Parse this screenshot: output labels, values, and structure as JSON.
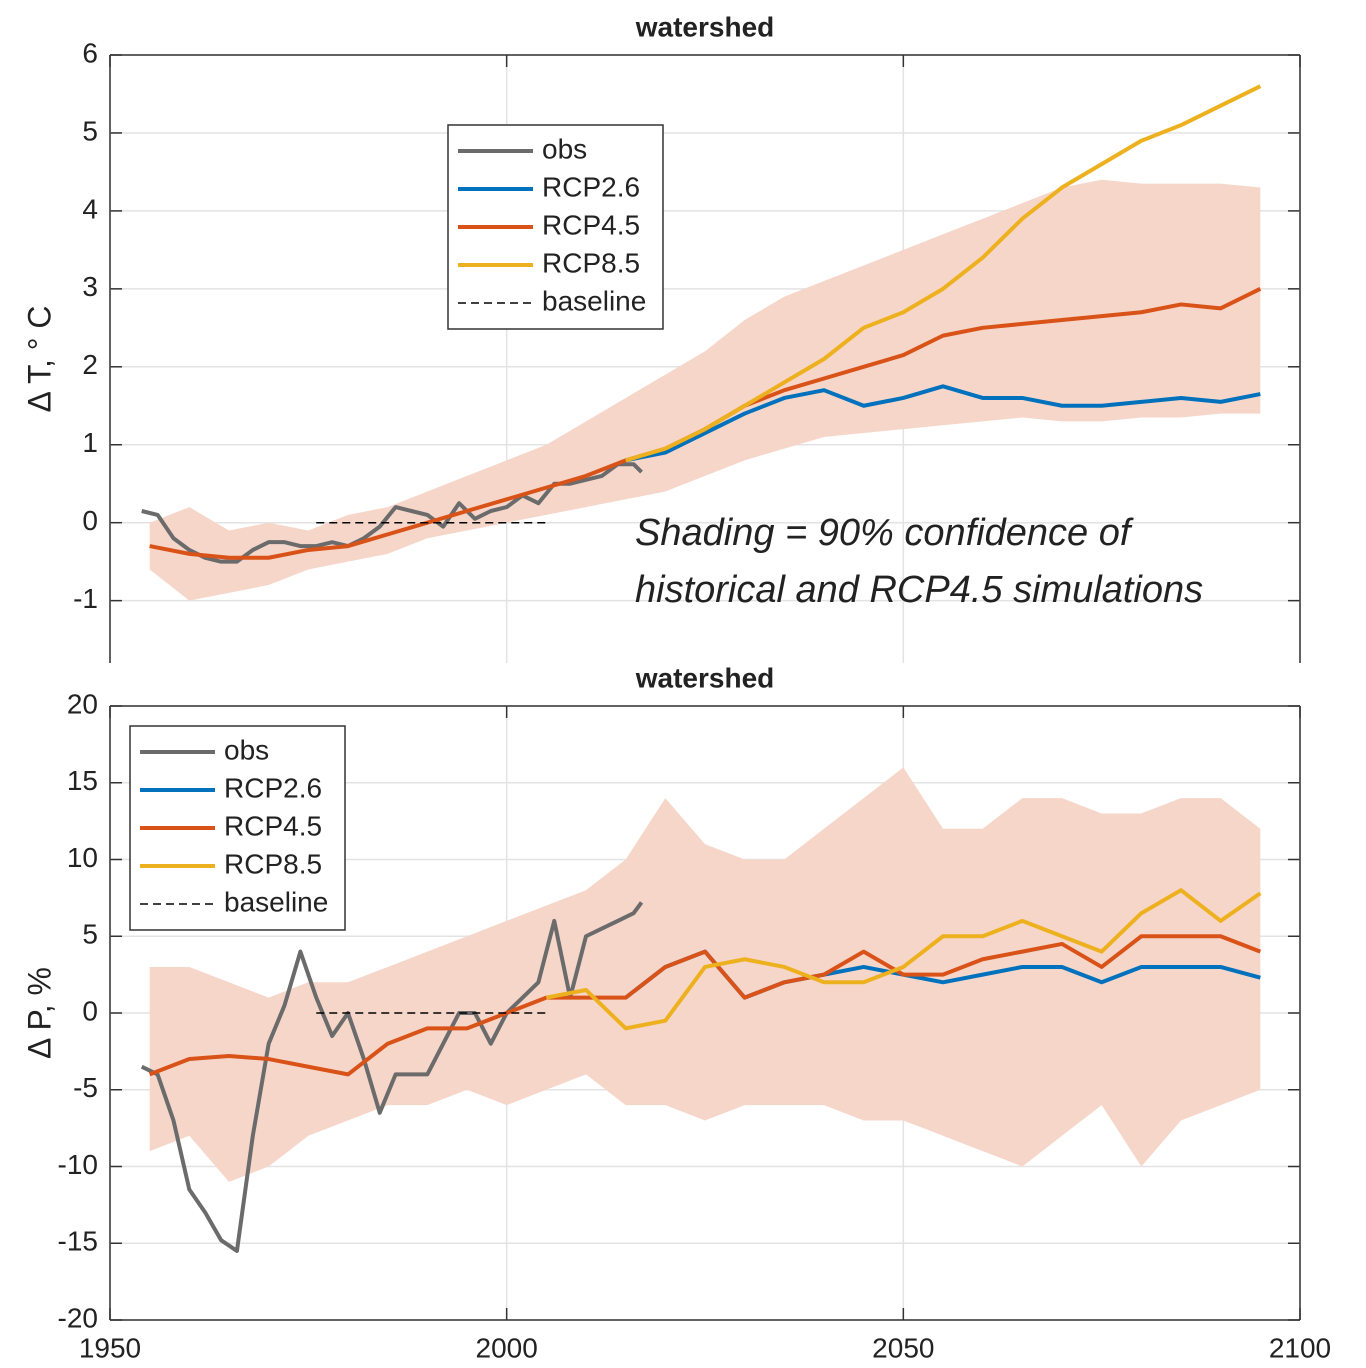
{
  "chart_data": [
    {
      "type": "line",
      "title": "watershed",
      "ylabel": "Δ T, ° C",
      "xlim": [
        1950,
        2100
      ],
      "xticks": [
        1950,
        2000,
        2050,
        2100
      ],
      "ylim": [
        -1.8,
        6
      ],
      "yticks": [
        -1,
        0,
        1,
        2,
        3,
        4,
        5,
        6
      ],
      "grid": true,
      "legend": "upper center",
      "annotation": [
        "Shading = 90% confidence of",
        "historical and RCP4.5 simulations"
      ],
      "band": {
        "color": "#f7d6ca",
        "x": [
          1955,
          1960,
          1965,
          1970,
          1975,
          1980,
          1985,
          1990,
          1995,
          2000,
          2005,
          2010,
          2015,
          2020,
          2025,
          2030,
          2035,
          2040,
          2045,
          2050,
          2055,
          2060,
          2065,
          2070,
          2075,
          2080,
          2085,
          2090,
          2095
        ],
        "lower": [
          -0.6,
          -1.0,
          -0.9,
          -0.8,
          -0.6,
          -0.5,
          -0.4,
          -0.2,
          -0.1,
          0.0,
          0.1,
          0.2,
          0.3,
          0.4,
          0.6,
          0.8,
          0.95,
          1.1,
          1.15,
          1.2,
          1.25,
          1.3,
          1.35,
          1.3,
          1.3,
          1.35,
          1.35,
          1.4,
          1.4
        ],
        "upper": [
          0.0,
          0.2,
          -0.1,
          0.0,
          -0.1,
          0.1,
          0.2,
          0.4,
          0.6,
          0.8,
          1.0,
          1.3,
          1.6,
          1.9,
          2.2,
          2.6,
          2.9,
          3.1,
          3.3,
          3.5,
          3.7,
          3.9,
          4.1,
          4.3,
          4.4,
          4.35,
          4.35,
          4.35,
          4.3
        ]
      },
      "series": [
        {
          "name": "obs",
          "color": "#6b6b6b",
          "linestyle": "solid",
          "x": [
            1954,
            1956,
            1958,
            1960,
            1962,
            1964,
            1966,
            1968,
            1970,
            1972,
            1974,
            1976,
            1978,
            1980,
            1982,
            1984,
            1986,
            1988,
            1990,
            1992,
            1994,
            1996,
            1998,
            2000,
            2002,
            2004,
            2006,
            2008,
            2010,
            2012,
            2014,
            2016,
            2017
          ],
          "values": [
            0.15,
            0.1,
            -0.2,
            -0.35,
            -0.45,
            -0.5,
            -0.5,
            -0.35,
            -0.25,
            -0.25,
            -0.3,
            -0.3,
            -0.25,
            -0.3,
            -0.2,
            -0.05,
            0.2,
            0.15,
            0.1,
            -0.05,
            0.25,
            0.05,
            0.15,
            0.2,
            0.35,
            0.25,
            0.5,
            0.5,
            0.55,
            0.6,
            0.75,
            0.75,
            0.65
          ]
        },
        {
          "name": "RCP2.6",
          "color": "#0072bd",
          "linestyle": "solid",
          "x": [
            2015,
            2020,
            2025,
            2030,
            2035,
            2040,
            2045,
            2050,
            2055,
            2060,
            2065,
            2070,
            2075,
            2080,
            2085,
            2090,
            2095
          ],
          "values": [
            0.8,
            0.9,
            1.15,
            1.4,
            1.6,
            1.7,
            1.5,
            1.6,
            1.75,
            1.6,
            1.6,
            1.5,
            1.5,
            1.55,
            1.6,
            1.55,
            1.65
          ]
        },
        {
          "name": "RCP4.5",
          "color": "#d95319",
          "linestyle": "solid",
          "x": [
            1955,
            1960,
            1965,
            1970,
            1975,
            1980,
            1985,
            1990,
            1995,
            2000,
            2005,
            2010,
            2015,
            2020,
            2025,
            2030,
            2035,
            2040,
            2045,
            2050,
            2055,
            2060,
            2065,
            2070,
            2075,
            2080,
            2085,
            2090,
            2095
          ],
          "values": [
            -0.3,
            -0.4,
            -0.45,
            -0.45,
            -0.35,
            -0.3,
            -0.15,
            0.0,
            0.15,
            0.3,
            0.45,
            0.6,
            0.8,
            0.95,
            1.2,
            1.5,
            1.7,
            1.85,
            2.0,
            2.15,
            2.4,
            2.5,
            2.55,
            2.6,
            2.65,
            2.7,
            2.8,
            2.75,
            3.0
          ]
        },
        {
          "name": "RCP8.5",
          "color": "#edb120",
          "linestyle": "solid",
          "x": [
            2015,
            2020,
            2025,
            2030,
            2035,
            2040,
            2045,
            2050,
            2055,
            2060,
            2065,
            2070,
            2075,
            2080,
            2085,
            2090,
            2095
          ],
          "values": [
            0.8,
            0.95,
            1.2,
            1.5,
            1.8,
            2.1,
            2.5,
            2.7,
            3.0,
            3.4,
            3.9,
            4.3,
            4.6,
            4.9,
            5.1,
            5.35,
            5.6
          ]
        },
        {
          "name": "baseline",
          "color": "#000000",
          "linestyle": "dashed",
          "x": [
            1976,
            2005
          ],
          "values": [
            0,
            0
          ]
        }
      ]
    },
    {
      "type": "line",
      "title": "watershed",
      "ylabel": "Δ P, %",
      "xlim": [
        1950,
        2100
      ],
      "xticks": [
        1950,
        2000,
        2050,
        2100
      ],
      "ylim": [
        -20,
        20
      ],
      "yticks": [
        -20,
        -15,
        -10,
        -5,
        0,
        5,
        10,
        15,
        20
      ],
      "grid": true,
      "legend": "upper left",
      "band": {
        "color": "#f7d6ca",
        "x": [
          1955,
          1960,
          1965,
          1970,
          1975,
          1980,
          1985,
          1990,
          1995,
          2000,
          2005,
          2010,
          2015,
          2020,
          2025,
          2030,
          2035,
          2040,
          2045,
          2050,
          2055,
          2060,
          2065,
          2070,
          2075,
          2080,
          2085,
          2090,
          2095
        ],
        "lower": [
          -9,
          -8,
          -11,
          -10,
          -8,
          -7,
          -6,
          -6,
          -5,
          -6,
          -5,
          -4,
          -6,
          -6,
          -7,
          -6,
          -6,
          -6,
          -7,
          -7,
          -8,
          -9,
          -10,
          -8,
          -6,
          -10,
          -7,
          -6,
          -5
        ],
        "upper": [
          3,
          3,
          2,
          1,
          2,
          2,
          3,
          4,
          5,
          6,
          7,
          8,
          10,
          14,
          11,
          10,
          10,
          12,
          14,
          16,
          12,
          12,
          14,
          14,
          13,
          13,
          14,
          14,
          12
        ]
      },
      "series": [
        {
          "name": "obs",
          "color": "#6b6b6b",
          "linestyle": "solid",
          "x": [
            1954,
            1956,
            1958,
            1960,
            1962,
            1964,
            1966,
            1968,
            1970,
            1972,
            1974,
            1976,
            1978,
            1980,
            1982,
            1984,
            1986,
            1988,
            1990,
            1992,
            1994,
            1996,
            1998,
            2000,
            2002,
            2004,
            2006,
            2008,
            2010,
            2012,
            2014,
            2016,
            2017
          ],
          "values": [
            -3.5,
            -4,
            -7,
            -11.5,
            -13,
            -14.8,
            -15.5,
            -8,
            -2,
            0.5,
            4,
            1,
            -1.5,
            0,
            -3,
            -6.5,
            -4,
            -4,
            -4,
            -2,
            0,
            0,
            -2,
            0,
            1,
            2,
            6,
            1,
            5,
            5.5,
            6,
            6.5,
            7.2
          ]
        },
        {
          "name": "RCP2.6",
          "color": "#0072bd",
          "linestyle": "solid",
          "x": [
            2015,
            2020,
            2025,
            2030,
            2035,
            2040,
            2045,
            2050,
            2055,
            2060,
            2065,
            2070,
            2075,
            2080,
            2085,
            2090,
            2095
          ],
          "values": [
            1,
            3,
            4,
            1,
            2,
            2.5,
            3,
            2.5,
            2,
            2.5,
            3,
            3,
            2,
            3,
            3,
            3,
            2.3
          ]
        },
        {
          "name": "RCP4.5",
          "color": "#d95319",
          "linestyle": "solid",
          "x": [
            1955,
            1960,
            1965,
            1970,
            1975,
            1980,
            1985,
            1990,
            1995,
            2000,
            2005,
            2010,
            2015,
            2020,
            2025,
            2030,
            2035,
            2040,
            2045,
            2050,
            2055,
            2060,
            2065,
            2070,
            2075,
            2080,
            2085,
            2090,
            2095
          ],
          "values": [
            -4,
            -3,
            -2.8,
            -3,
            -3.5,
            -4,
            -2,
            -1,
            -1,
            0,
            1,
            1,
            1,
            3,
            4,
            1,
            2,
            2.5,
            4,
            2.5,
            2.5,
            3.5,
            4,
            4.5,
            3,
            5,
            5,
            5,
            4
          ]
        },
        {
          "name": "RCP8.5",
          "color": "#edb120",
          "linestyle": "solid",
          "x": [
            2005,
            2010,
            2015,
            2020,
            2025,
            2030,
            2035,
            2040,
            2045,
            2050,
            2055,
            2060,
            2065,
            2070,
            2075,
            2080,
            2085,
            2090,
            2095
          ],
          "values": [
            1,
            1.5,
            -1,
            -0.5,
            3,
            3.5,
            3,
            2,
            2,
            3,
            5,
            5,
            6,
            5,
            4,
            6.5,
            8,
            6,
            7.8
          ]
        },
        {
          "name": "baseline",
          "color": "#000000",
          "linestyle": "dashed",
          "x": [
            1976,
            2005
          ],
          "values": [
            0,
            0
          ]
        }
      ]
    }
  ]
}
